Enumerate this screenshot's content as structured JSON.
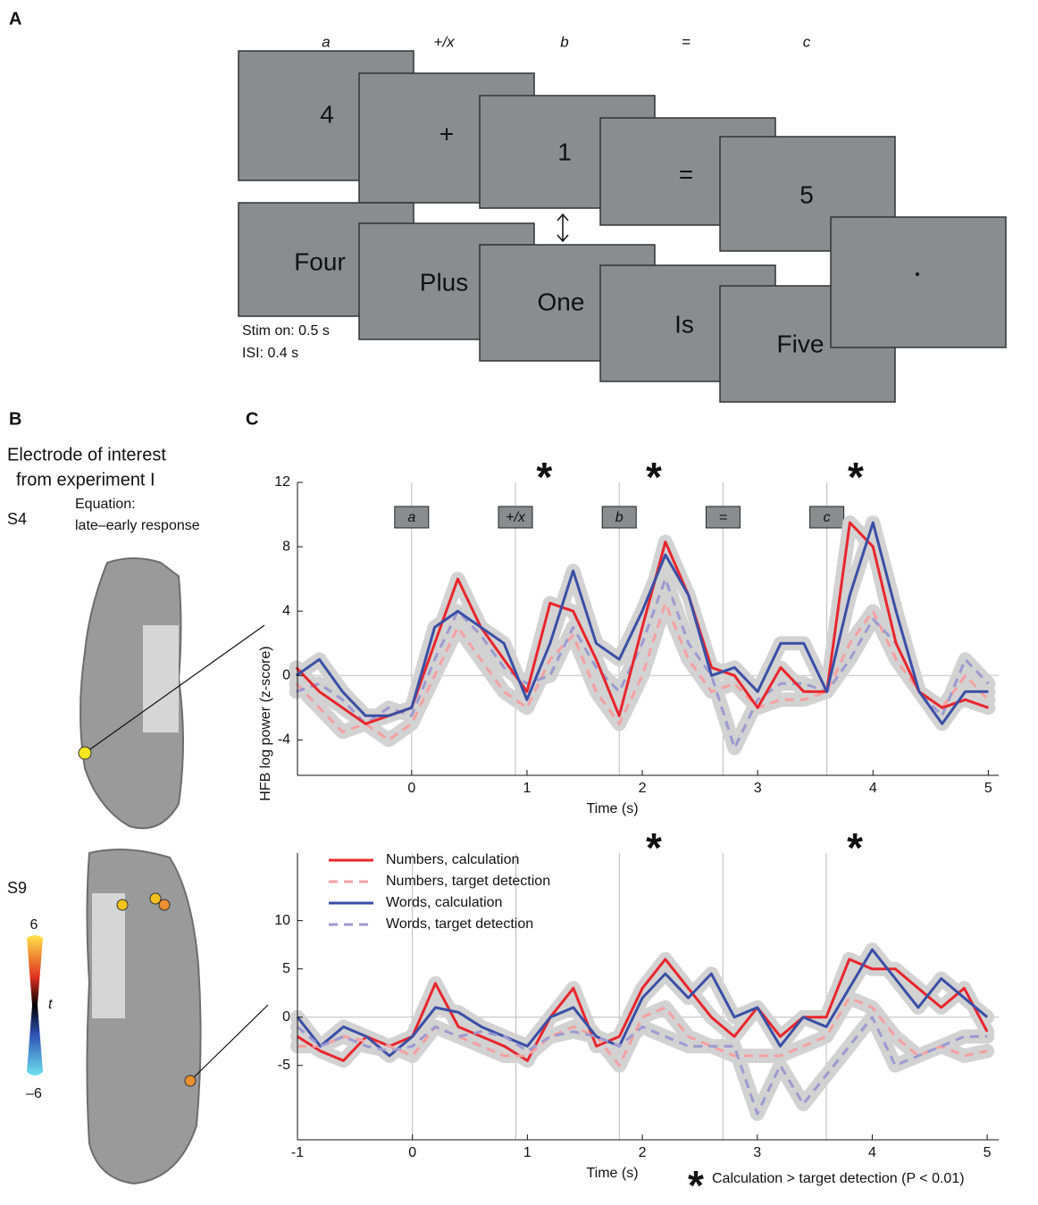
{
  "panel_a": {
    "label": "A",
    "headers": [
      "a",
      "+/x",
      "b",
      "=",
      "c"
    ],
    "numbers_row": [
      "4",
      "+",
      "1",
      "=",
      "5"
    ],
    "words_row": [
      "Four",
      "Plus",
      "One",
      "Is",
      "Five"
    ],
    "timing": [
      "Stim on: 0.5 s",
      "ISI: 0.4 s"
    ]
  },
  "panel_b": {
    "label": "B",
    "title": [
      "Electrode of interest",
      "from experiment I"
    ],
    "subjects": [
      "S4",
      "S9"
    ],
    "measure": [
      "Equation:",
      "late–early response"
    ],
    "colorbar": {
      "max": "6",
      "name": "t",
      "min": "–6"
    }
  },
  "panel_c": {
    "label": "C",
    "ylabel": "HFB log power (z-score)"
  },
  "chart_data": [
    {
      "type": "line",
      "xlabel": "Time (s)",
      "xlim": [
        -0.99,
        5.09
      ],
      "xticks": [
        0,
        1,
        2,
        3,
        4,
        5
      ],
      "ylim": [
        -6.2,
        12
      ],
      "yticks": [
        -4,
        0,
        4,
        8,
        12
      ],
      "zero_line": true,
      "events": [
        {
          "x": 0,
          "label": "a"
        },
        {
          "x": 0.9,
          "label": "+/x"
        },
        {
          "x": 1.8,
          "label": "b"
        },
        {
          "x": 2.7,
          "label": "="
        },
        {
          "x": 3.6,
          "label": "c"
        }
      ],
      "significance": [
        {
          "x": 1.15,
          "label": "*"
        },
        {
          "x": 2.1,
          "label": "*"
        },
        {
          "x": 3.85,
          "label": "*"
        }
      ],
      "x": [
        -1,
        -0.8,
        -0.6,
        -0.4,
        -0.2,
        0,
        0.2,
        0.4,
        0.6,
        0.8,
        1,
        1.2,
        1.4,
        1.6,
        1.8,
        2,
        2.2,
        2.4,
        2.6,
        2.8,
        3,
        3.2,
        3.4,
        3.6,
        3.8,
        4,
        4.2,
        4.4,
        4.6,
        4.8,
        5
      ],
      "series": [
        {
          "color": "#f4a0a0",
          "dashed": true,
          "values": [
            -0.5,
            -2,
            -3.5,
            -3,
            -4,
            -3,
            0,
            3,
            1,
            -1,
            -2,
            1,
            2.5,
            -1,
            -3,
            0,
            4.5,
            1,
            -1,
            -0.5,
            -2,
            -1.5,
            -1.5,
            -1,
            2,
            4,
            1,
            -1,
            -2,
            0,
            -1.5
          ]
        },
        {
          "color": "#9c9ad0",
          "dashed": true,
          "values": [
            -1,
            -0.5,
            -1.5,
            -3,
            -2,
            -2.5,
            1,
            4,
            2.5,
            0.5,
            -0.5,
            0,
            3,
            0.5,
            -1,
            2,
            6,
            2,
            0,
            -4.5,
            -1.5,
            -0.5,
            -0.5,
            -1,
            1,
            3.5,
            2,
            -1,
            -2.5,
            1,
            -0.5
          ]
        },
        {
          "color": "#e8262d",
          "dashed": false,
          "values": [
            0.5,
            -1,
            -2,
            -3,
            -2.5,
            -2,
            2,
            6,
            3,
            1,
            -1,
            4.5,
            4,
            1,
            -2.5,
            3,
            8.3,
            5,
            0.5,
            0,
            -2,
            0.5,
            -1,
            -1,
            9.5,
            8,
            2,
            -1,
            -2,
            -1.5,
            -2
          ]
        },
        {
          "color": "#3a4fa6",
          "dashed": false,
          "values": [
            0,
            1,
            -1,
            -2.5,
            -2.5,
            -2,
            3,
            4,
            3,
            2,
            -1.5,
            2,
            6.5,
            2,
            1,
            4,
            7.5,
            5,
            0,
            0.5,
            -1,
            2,
            2,
            -1,
            5,
            9.5,
            4,
            -1,
            -3,
            -1,
            -1
          ]
        }
      ]
    },
    {
      "type": "line",
      "xlabel": "Time (s)",
      "xlim": [
        -1,
        5.1
      ],
      "xticks": [
        -1,
        0,
        1,
        2,
        3,
        4,
        5
      ],
      "ylim": [
        -12.7,
        17
      ],
      "yticks": [
        -5,
        0,
        5,
        10
      ],
      "zero_line": true,
      "events": [
        {
          "x": 0
        },
        {
          "x": 0.9
        },
        {
          "x": 1.8
        },
        {
          "x": 2.7
        },
        {
          "x": 3.6
        }
      ],
      "significance": [
        {
          "x": 2.1,
          "label": "*"
        },
        {
          "x": 3.85,
          "label": "*"
        }
      ],
      "legend": "upper left",
      "note_marker": "*",
      "note": "Calculation > target detection (P < 0.01)",
      "x": [
        -1,
        -0.8,
        -0.6,
        -0.4,
        -0.2,
        0,
        0.2,
        0.4,
        0.6,
        0.8,
        1,
        1.2,
        1.4,
        1.6,
        1.8,
        2,
        2.2,
        2.4,
        2.6,
        2.8,
        3,
        3.2,
        3.4,
        3.6,
        3.8,
        4,
        4.2,
        4.4,
        4.6,
        4.8,
        5
      ],
      "series": [
        {
          "name": "Numbers, calculation",
          "color": "#e8262d",
          "dashed": false,
          "values": [
            -2,
            -3.5,
            -4.5,
            -2,
            -3,
            -2,
            3.5,
            -1,
            -2,
            -3,
            -4.5,
            0,
            3,
            -3,
            -2,
            3,
            6,
            3,
            0,
            -2,
            1,
            -2,
            0,
            0,
            6,
            5,
            5,
            3,
            1,
            3,
            -1.5
          ]
        },
        {
          "name": "Numbers, target detection",
          "color": "#f4a0a0",
          "dashed": true,
          "values": [
            -3,
            -3,
            -2,
            -2.5,
            -3,
            -4,
            -1,
            -2,
            -3,
            -4,
            -4,
            -2,
            -1,
            -2,
            -5,
            0,
            1,
            -2,
            -3,
            -4,
            -4,
            -4,
            -3,
            -2,
            2,
            1,
            -2,
            -4,
            -3,
            -4,
            -3.5
          ]
        },
        {
          "name": "Words, calculation",
          "color": "#3a4fa6",
          "dashed": false,
          "values": [
            0,
            -3,
            -1,
            -2,
            -4,
            -2,
            1,
            0.5,
            -1,
            -2,
            -3,
            0,
            1,
            -2,
            -3,
            2,
            4.5,
            2,
            4.5,
            0,
            1,
            -3,
            0,
            -1,
            3,
            7,
            4,
            1,
            4,
            2,
            0
          ]
        },
        {
          "name": "Words, target detection",
          "color": "#9c9ad0",
          "dashed": true,
          "values": [
            -1,
            -3,
            -2,
            -3,
            -3.5,
            -3,
            -1,
            -2,
            -1.5,
            -2,
            -3.5,
            -2,
            -1.5,
            -2,
            -3,
            -1,
            -2,
            -3,
            -3,
            -3,
            -10,
            -5,
            -9,
            -6,
            -3,
            0,
            -5,
            -4,
            -3,
            -2,
            -2
          ]
        }
      ]
    }
  ]
}
